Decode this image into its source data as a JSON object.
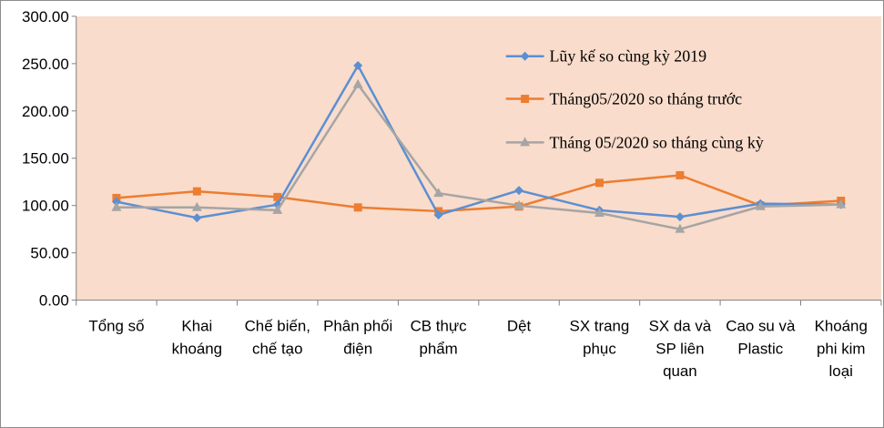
{
  "chart_data": {
    "type": "line",
    "title": "",
    "xlabel": "",
    "ylabel": "",
    "ylim": [
      0,
      300
    ],
    "yticks": [
      "0.00",
      "50.00",
      "100.00",
      "150.00",
      "200.00",
      "250.00",
      "300.00"
    ],
    "grid": false,
    "legend_position": "top-right (inside plot)",
    "plot_background": "#f9dccb",
    "categories": [
      [
        "Tổng số"
      ],
      [
        "Khai",
        "khoáng"
      ],
      [
        "Chế biến,",
        "chế tạo"
      ],
      [
        "Phân phối",
        "điện"
      ],
      [
        "CB thực",
        "phẩm"
      ],
      [
        "Dệt"
      ],
      [
        "SX trang",
        "phục"
      ],
      [
        "SX da và",
        "SP liên",
        "quan"
      ],
      [
        "Cao su và",
        "Plastic"
      ],
      [
        "Khoáng",
        "phi kim",
        "loại"
      ]
    ],
    "series": [
      {
        "name": "Lũy kế so cùng kỳ  2019",
        "color": "#5b8fd2",
        "marker": "diamond",
        "values": [
          104,
          87,
          101,
          248,
          90,
          116,
          95,
          88,
          102,
          101
        ]
      },
      {
        "name": "Tháng05/2020 so tháng  trước",
        "color": "#ed7d31",
        "marker": "square",
        "values": [
          108,
          115,
          109,
          98,
          94,
          99,
          124,
          132,
          100,
          105
        ]
      },
      {
        "name": "Tháng  05/2020 so tháng  cùng kỳ",
        "color": "#a5a5a5",
        "marker": "triangle",
        "values": [
          98,
          98,
          95,
          228,
          113,
          100,
          92,
          75,
          99,
          101
        ]
      }
    ]
  }
}
